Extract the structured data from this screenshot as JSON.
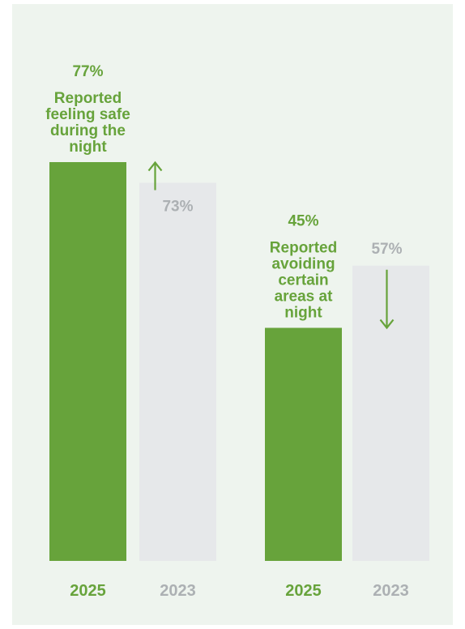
{
  "chart_data": {
    "type": "bar",
    "groups": [
      {
        "name": "Reported feeling safe during the night",
        "label_lines": [
          "Reported",
          "feeling safe",
          "during the",
          "night"
        ],
        "current": {
          "year": "2025",
          "value": 77,
          "label": "77%"
        },
        "previous": {
          "year": "2023",
          "value": 73,
          "label": "73%"
        },
        "trend": "up"
      },
      {
        "name": "Reported avoiding certain areas at night",
        "label_lines": [
          "Reported",
          "avoiding",
          "certain",
          "areas at",
          "night"
        ],
        "current": {
          "year": "2025",
          "value": 45,
          "label": "45%"
        },
        "previous": {
          "year": "2023",
          "value": 57,
          "label": "57%"
        },
        "trend": "down"
      }
    ],
    "ylim": [
      0,
      100
    ],
    "colors": {
      "current": "#67a33b",
      "previous": "#e6e8ea",
      "current_text": "#67a33b",
      "previous_text": "#acb0b3",
      "arrow": "#67a33b",
      "background": "#eef4ee"
    }
  }
}
